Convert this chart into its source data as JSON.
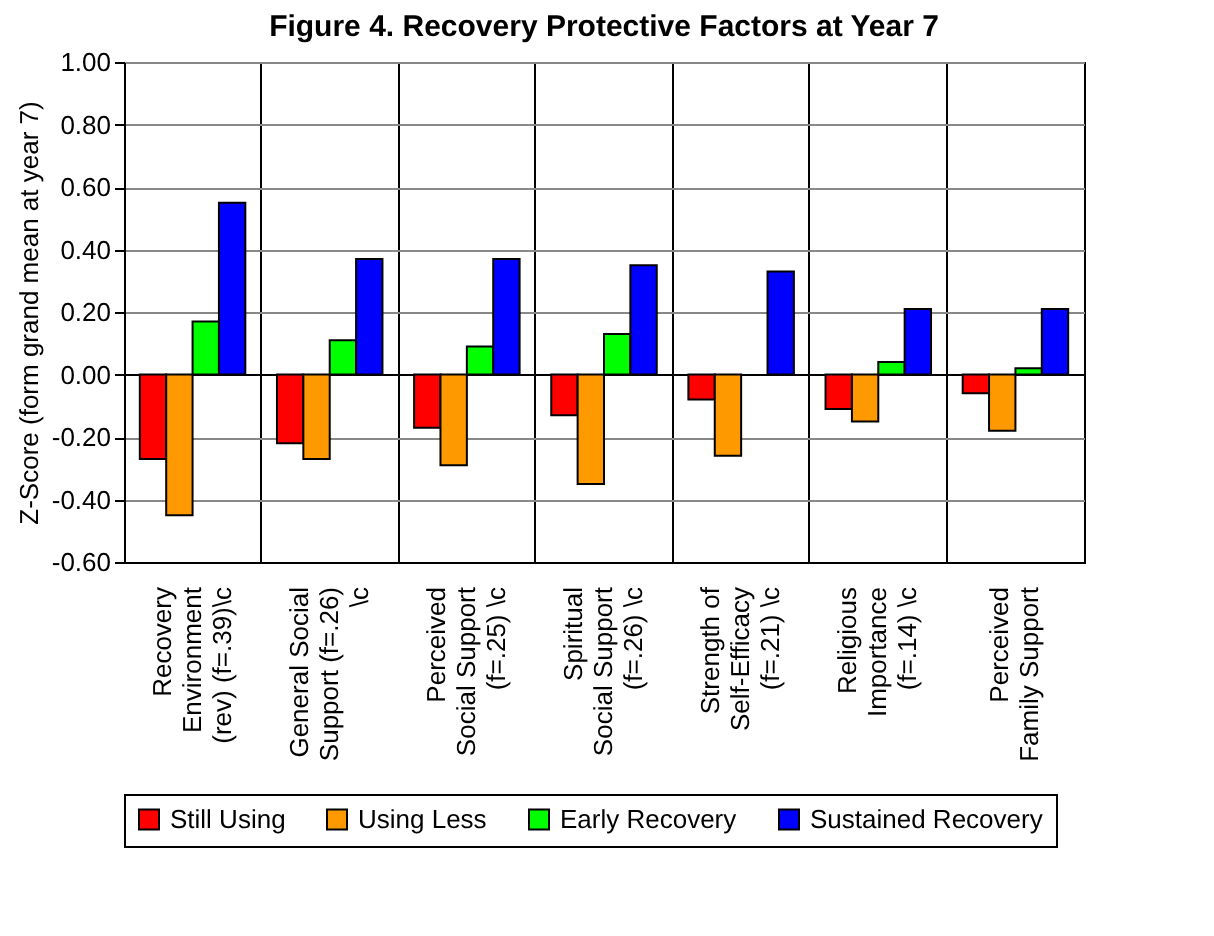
{
  "chart_data": {
    "type": "bar",
    "title": "Figure 4.   Recovery Protective Factors at Year 7",
    "ylabel": "Z-Score (form grand mean at year 7)",
    "categories": [
      "Recovery Environment (rev) (f=.39)\\c",
      "General Social Support (f=.26) \\c",
      "Perceived Social Support (f=.25) \\c",
      "Spiritual Social Support (f=.26) \\c",
      "Strength of Self-Efficacy (f=.21) \\c",
      "Religious Importance (f=.14) \\c",
      "Perceived Family Support"
    ],
    "series": [
      {
        "name": "Still Using",
        "color": "#ff0000",
        "values": [
          -0.27,
          -0.22,
          -0.17,
          -0.13,
          -0.08,
          -0.11,
          -0.06
        ]
      },
      {
        "name": "Using Less",
        "color": "#ff9900",
        "values": [
          -0.45,
          -0.27,
          -0.29,
          -0.35,
          -0.26,
          -0.15,
          -0.18
        ]
      },
      {
        "name": "Early Recovery",
        "color": "#00ff00",
        "values": [
          0.17,
          0.11,
          0.09,
          0.13,
          0.0,
          0.04,
          0.02
        ]
      },
      {
        "name": "Sustained Recovery",
        "color": "#0000ff",
        "values": [
          0.55,
          0.37,
          0.37,
          0.35,
          0.33,
          0.21,
          0.21
        ]
      }
    ],
    "ylim": [
      -0.6,
      1.0
    ],
    "yticks": [
      {
        "value": -0.6,
        "label": "-0.60"
      },
      {
        "value": -0.4,
        "label": "-0.40"
      },
      {
        "value": -0.2,
        "label": "-0.20"
      },
      {
        "value": 0,
        "label": "0.00"
      },
      {
        "value": 0.2,
        "label": "0.20"
      },
      {
        "value": 0.4,
        "label": "0.40"
      },
      {
        "value": 0.6,
        "label": "0.60"
      },
      {
        "value": 0.8,
        "label": "0.80"
      },
      {
        "value": 1.0,
        "label": "1.00"
      }
    ],
    "grid": true,
    "legend": "bottom"
  }
}
